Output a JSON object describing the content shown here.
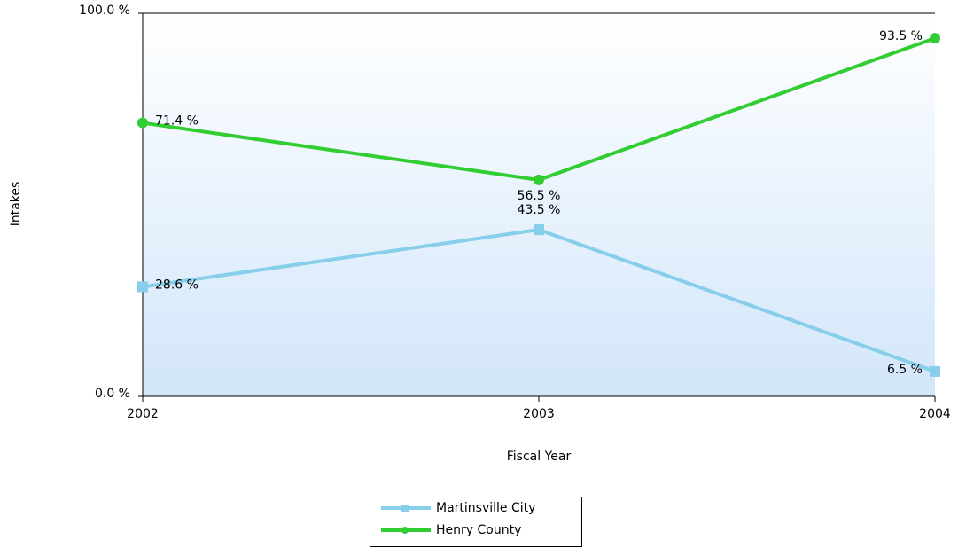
{
  "chart_data": {
    "type": "line",
    "categories": [
      "2002",
      "2003",
      "2004"
    ],
    "x_label": "Fiscal Year",
    "y_label": "Intakes",
    "ylim": [
      0,
      100
    ],
    "yticks": [
      {
        "value": 0,
        "label": "0.0 %"
      },
      {
        "value": 100,
        "label": "100.0 %"
      }
    ],
    "series": [
      {
        "name": "Martinsville City",
        "color": "#87ceeb",
        "marker": "square",
        "values": [
          28.6,
          43.5,
          6.5
        ],
        "value_labels": [
          "28.6 %",
          "43.5 %",
          "6.5 %"
        ]
      },
      {
        "name": "Henry County",
        "color": "#32cd32",
        "marker": "circle",
        "values": [
          71.4,
          56.5,
          93.5
        ],
        "value_labels": [
          "71.4 %",
          "56.5 %",
          "93.5 %"
        ]
      }
    ]
  }
}
